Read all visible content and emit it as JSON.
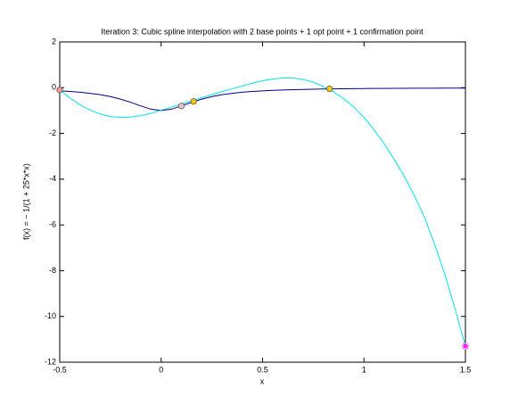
{
  "chart_data": {
    "type": "line",
    "title": "Iteration 3: Cubic spline interpolation with 2 base points + 1 opt point + 1 confirmation point",
    "xlabel": "x",
    "ylabel": "f(x) = − 1/(1 + 25*x*x)",
    "x": [
      -0.5,
      -0.45,
      -0.4,
      -0.35,
      -0.3,
      -0.25,
      -0.2,
      -0.15,
      -0.1,
      -0.05,
      0,
      0.05,
      0.1,
      0.15,
      0.2,
      0.25,
      0.3,
      0.35,
      0.4,
      0.45,
      0.5,
      0.55,
      0.6,
      0.65,
      0.7,
      0.75,
      0.8,
      0.85,
      0.9,
      0.95,
      1,
      1.05,
      1.1,
      1.15,
      1.2,
      1.25,
      1.3,
      1.35,
      1.4,
      1.45,
      1.5
    ],
    "series": [
      {
        "color": "#00008b",
        "values": [
          -0.138,
          -0.165,
          -0.2,
          -0.246,
          -0.308,
          -0.39,
          -0.5,
          -0.64,
          -0.8,
          -0.941,
          -1,
          -0.941,
          -0.8,
          -0.64,
          -0.5,
          -0.39,
          -0.308,
          -0.246,
          -0.2,
          -0.165,
          -0.138,
          -0.117,
          -0.1,
          -0.086,
          -0.075,
          -0.066,
          -0.059,
          -0.052,
          -0.047,
          -0.042,
          -0.038,
          -0.035,
          -0.032,
          -0.029,
          -0.027,
          -0.025,
          -0.023,
          -0.021,
          -0.02,
          -0.019,
          -0.017
        ]
      },
      {
        "color": "#00e5ee",
        "values": [
          -0.1,
          -0.45,
          -0.75,
          -0.98,
          -1.15,
          -1.26,
          -1.3,
          -1.28,
          -1.22,
          -1.12,
          -0.98,
          -0.85,
          -0.72,
          -0.58,
          -0.44,
          -0.3,
          -0.17,
          -0.05,
          0.07,
          0.2,
          0.3,
          0.38,
          0.42,
          0.42,
          0.36,
          0.24,
          0.05,
          -0.18,
          -0.48,
          -0.85,
          -1.3,
          -1.85,
          -2.45,
          -3.15,
          -3.9,
          -4.75,
          -5.7,
          -6.9,
          -8.2,
          -9.7,
          -11.3
        ]
      }
    ],
    "markers": [
      {
        "x": -0.5,
        "y": -0.1,
        "shape": "circle",
        "color": "#ff9999"
      },
      {
        "x": 0.1,
        "y": -0.8,
        "shape": "circle",
        "color": "#f4c2cc"
      },
      {
        "x": 0.16,
        "y": -0.6,
        "shape": "circle",
        "color": "#ffcc00"
      },
      {
        "x": 0.83,
        "y": -0.05,
        "shape": "circle",
        "color": "#ffcc00"
      },
      {
        "x": 1.5,
        "y": -11.3,
        "shape": "star",
        "color": "#ff00ff"
      }
    ],
    "xlim": [
      -0.5,
      1.5
    ],
    "xticks": [
      -0.5,
      0,
      0.5,
      1,
      1.5
    ],
    "ylim": [
      -12,
      2
    ],
    "yticks": [
      -12,
      -10,
      -8,
      -6,
      -4,
      -2,
      0,
      2
    ],
    "grid": false
  }
}
